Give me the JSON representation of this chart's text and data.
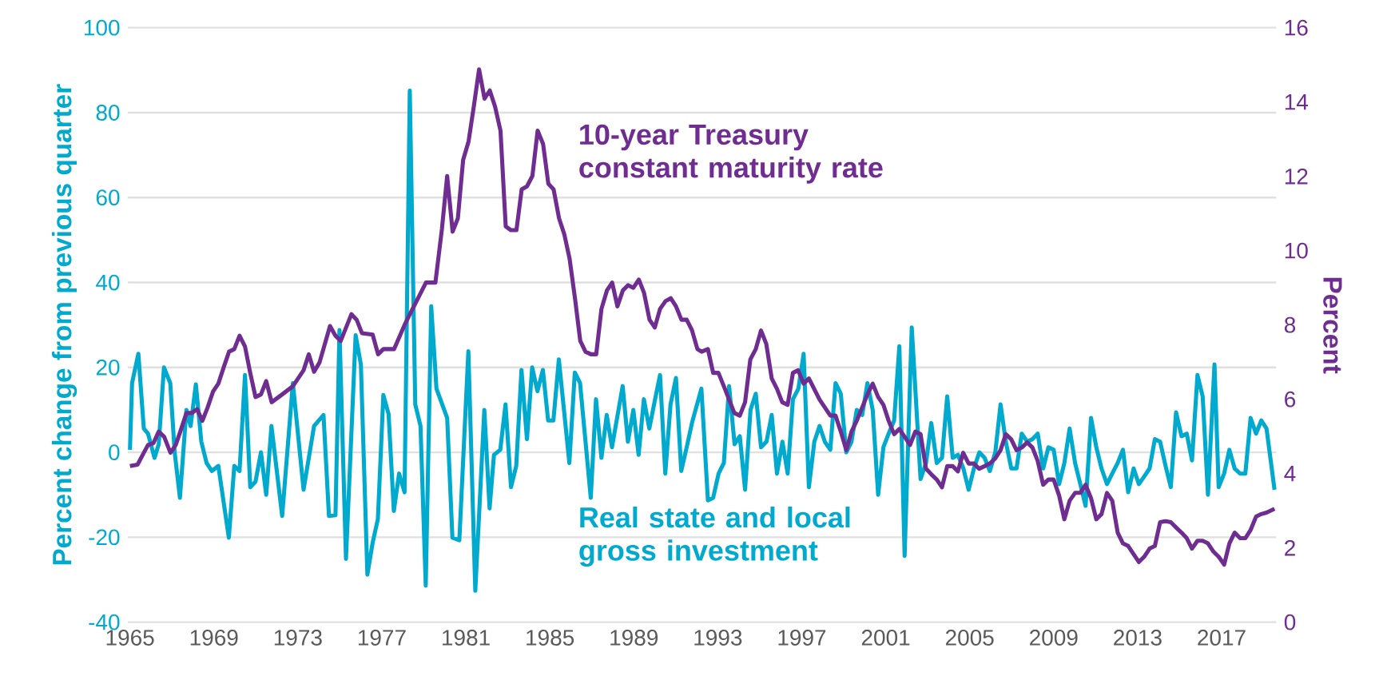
{
  "chart_data": {
    "type": "line",
    "ylabel": "Percent change from previous quarter",
    "y2label": "Percent",
    "xlim": [
      1964.9,
      2019.6
    ],
    "xticks": [
      1965,
      1969,
      1973,
      1977,
      1981,
      1985,
      1989,
      1993,
      1997,
      2001,
      2005,
      2009,
      2013,
      2017
    ],
    "ylim": [
      -40,
      100
    ],
    "yticks": [
      -40,
      -20,
      0,
      20,
      40,
      60,
      80,
      100
    ],
    "y2lim": [
      0,
      16
    ],
    "y2ticks": [
      0,
      2,
      4,
      6,
      8,
      10,
      12,
      14,
      16
    ],
    "grid": "y",
    "series": [
      {
        "name": "Real state and local gross investment",
        "color": "#00a9ce",
        "axis": "y",
        "x": [
          1965.0,
          1965.1,
          1965.4,
          1965.66,
          1965.86,
          1966.17,
          1966.37,
          1966.62,
          1966.92,
          1967.13,
          1967.38,
          1967.69,
          1967.89,
          1968.14,
          1968.4,
          1968.65,
          1968.9,
          1969.21,
          1969.71,
          1969.97,
          1970.22,
          1970.48,
          1970.73,
          1970.98,
          1971.24,
          1971.49,
          1971.74,
          1972.25,
          1972.76,
          1973.27,
          1973.77,
          1974.22,
          1974.48,
          1974.79,
          1974.98,
          1975.29,
          1975.75,
          1976.0,
          1976.31,
          1976.56,
          1976.81,
          1977.07,
          1977.32,
          1977.57,
          1977.82,
          1978.08,
          1978.33,
          1978.59,
          1978.84,
          1979.09,
          1979.35,
          1979.6,
          1980.11,
          1980.36,
          1980.69,
          1981.12,
          1981.45,
          1981.88,
          1982.13,
          1982.34,
          1982.64,
          1982.89,
          1983.15,
          1983.4,
          1983.65,
          1983.91,
          1984.16,
          1984.41,
          1984.67,
          1984.92,
          1985.17,
          1985.43,
          1985.93,
          1986.19,
          1986.44,
          1986.95,
          1987.2,
          1987.46,
          1987.71,
          1987.96,
          1988.47,
          1988.72,
          1988.98,
          1989.23,
          1989.48,
          1989.74,
          1989.99,
          1990.25,
          1990.5,
          1990.75,
          1991.01,
          1991.26,
          1991.52,
          1991.77,
          1992.22,
          1992.53,
          1992.78,
          1993.04,
          1993.29,
          1993.54,
          1993.8,
          1994.05,
          1994.3,
          1994.56,
          1994.81,
          1995.06,
          1995.32,
          1995.57,
          1995.82,
          1996.08,
          1996.33,
          1996.58,
          1996.84,
          1997.09,
          1997.34,
          1997.6,
          1997.85,
          1998.1,
          1998.36,
          1998.61,
          1998.86,
          1999.12,
          1999.37,
          1999.62,
          1999.88,
          2000.13,
          2000.38,
          2000.64,
          2000.89,
          2001.14,
          2001.4,
          2001.65,
          2001.9,
          2002.24,
          2002.66,
          2002.92,
          2003.17,
          2003.43,
          2003.68,
          2003.93,
          2004.19,
          2004.44,
          2004.7,
          2004.95,
          2005.2,
          2005.46,
          2005.71,
          2005.96,
          2006.22,
          2006.47,
          2006.72,
          2006.98,
          2007.23,
          2007.48,
          2007.74,
          2007.99,
          2008.24,
          2008.5,
          2008.75,
          2009.0,
          2009.26,
          2009.51,
          2009.76,
          2010.02,
          2010.27,
          2010.52,
          2010.78,
          2011.03,
          2011.28,
          2011.54,
          2011.79,
          2012.05,
          2012.3,
          2012.55,
          2012.81,
          2013.06,
          2013.31,
          2013.57,
          2013.82,
          2014.07,
          2014.33,
          2014.58,
          2014.83,
          2015.09,
          2015.34,
          2015.59,
          2015.85,
          2016.1,
          2016.35,
          2016.66,
          2016.86,
          2017.12,
          2017.37,
          2017.62,
          2017.88,
          2018.13,
          2018.38,
          2018.64,
          2018.89,
          2019.14,
          2019.52
        ],
        "values": [
          0.6,
          16.3,
          23.2,
          5.6,
          4.4,
          -1.3,
          1.9,
          20.0,
          16.3,
          0.0,
          -10.7,
          10.0,
          6.2,
          16.0,
          2.5,
          -2.5,
          -4.4,
          -3.2,
          -20.1,
          -3.2,
          -4.4,
          18.2,
          -8.2,
          -6.9,
          0.0,
          -10.0,
          6.2,
          -15.0,
          16.3,
          -8.8,
          6.2,
          8.8,
          -15.0,
          -14.8,
          28.8,
          -25.1,
          27.6,
          20.7,
          -28.8,
          -21.3,
          -15.7,
          13.5,
          9.0,
          -13.8,
          -5.0,
          -9.4,
          85.2,
          11.3,
          6.2,
          -31.4,
          34.4,
          15.0,
          8.1,
          -20.1,
          -20.7,
          23.8,
          -32.6,
          10.0,
          -13.2,
          -0.6,
          0.6,
          11.3,
          -8.2,
          -3.2,
          19.4,
          3.1,
          20.0,
          14.4,
          19.4,
          7.5,
          7.5,
          21.9,
          -2.5,
          18.8,
          16.3,
          -10.7,
          12.5,
          -1.3,
          8.8,
          1.2,
          15.6,
          2.5,
          10.0,
          -0.6,
          12.5,
          5.6,
          11.9,
          18.2,
          -5.0,
          11.3,
          17.5,
          -4.4,
          1.2,
          6.9,
          15.0,
          -11.3,
          -10.7,
          -5.0,
          -2.5,
          15.6,
          1.9,
          3.8,
          -8.8,
          10.0,
          13.8,
          1.2,
          2.5,
          8.8,
          -5.0,
          2.5,
          -5.0,
          12.5,
          15.0,
          23.2,
          -8.2,
          2.5,
          6.2,
          2.5,
          0.6,
          16.3,
          13.8,
          0.0,
          2.5,
          10.0,
          8.8,
          16.3,
          10.0,
          -10.0,
          1.2,
          4.4,
          7.5,
          25.0,
          -24.4,
          29.4,
          -6.3,
          -2.5,
          6.9,
          -2.5,
          -1.3,
          13.2,
          -1.3,
          -0.6,
          -3.8,
          -8.8,
          -3.8,
          0.0,
          -1.3,
          -4.4,
          0.0,
          11.3,
          2.5,
          -3.8,
          -3.8,
          4.4,
          2.5,
          3.1,
          4.4,
          -3.8,
          1.2,
          0.6,
          -7.5,
          -2.5,
          5.6,
          -2.5,
          -7.5,
          -12.6,
          8.1,
          1.2,
          -3.8,
          -7.5,
          -5.0,
          -2.5,
          0.6,
          -9.4,
          -3.8,
          -7.5,
          -5.7,
          -3.8,
          3.1,
          2.5,
          -3.2,
          -8.2,
          9.4,
          3.8,
          4.4,
          -1.9,
          18.2,
          13.1,
          -10.0,
          20.7,
          -8.2,
          -5.0,
          0.6,
          -3.8,
          -5.0,
          -5.0,
          8.1,
          4.4,
          7.5,
          5.6,
          -8.8
        ]
      },
      {
        "name": "10-year Treasury constant maturity rate",
        "color": "#6f2c91",
        "axis": "y2",
        "x": [
          1965.0,
          1965.36,
          1965.66,
          1965.86,
          1966.12,
          1966.37,
          1966.63,
          1966.93,
          1967.18,
          1967.44,
          1967.69,
          1967.94,
          1968.2,
          1968.45,
          1968.7,
          1968.96,
          1969.21,
          1969.46,
          1969.72,
          1969.97,
          1970.22,
          1970.48,
          1970.73,
          1970.98,
          1971.24,
          1971.49,
          1971.75,
          1972.25,
          1972.76,
          1973.27,
          1973.52,
          1973.77,
          1974.03,
          1974.53,
          1974.79,
          1975.04,
          1975.55,
          1975.8,
          1976.05,
          1976.56,
          1976.82,
          1977.07,
          1977.58,
          1978.08,
          1978.46,
          1978.59,
          1979.1,
          1979.55,
          1979.86,
          1980.11,
          1980.37,
          1980.62,
          1980.87,
          1981.13,
          1981.38,
          1981.63,
          1981.89,
          1982.14,
          1982.39,
          1982.65,
          1982.9,
          1983.15,
          1983.41,
          1983.66,
          1983.91,
          1984.17,
          1984.42,
          1984.68,
          1984.93,
          1985.18,
          1985.44,
          1985.69,
          1985.94,
          1986.2,
          1986.45,
          1986.7,
          1986.96,
          1987.21,
          1987.46,
          1987.72,
          1987.97,
          1988.22,
          1988.48,
          1988.73,
          1988.98,
          1989.24,
          1989.49,
          1989.75,
          1990.0,
          1990.25,
          1990.51,
          1990.76,
          1991.01,
          1991.27,
          1991.52,
          1991.77,
          1992.03,
          1992.23,
          1992.53,
          1992.78,
          1993.03,
          1993.29,
          1993.54,
          1993.79,
          1994.05,
          1994.3,
          1994.55,
          1994.81,
          1995.06,
          1995.31,
          1995.57,
          1995.82,
          1996.07,
          1996.33,
          1996.58,
          1996.83,
          1997.09,
          1997.34,
          1997.59,
          1997.85,
          1998.1,
          1998.36,
          1998.61,
          1998.86,
          1999.12,
          1999.37,
          1999.62,
          1999.88,
          2000.13,
          2000.38,
          2000.64,
          2000.89,
          2001.14,
          2001.4,
          2001.65,
          2001.9,
          2002.16,
          2002.41,
          2002.66,
          2002.92,
          2003.17,
          2003.43,
          2003.68,
          2003.93,
          2004.19,
          2004.44,
          2004.69,
          2004.95,
          2005.2,
          2005.45,
          2005.71,
          2005.96,
          2006.22,
          2006.47,
          2006.72,
          2006.98,
          2007.23,
          2007.48,
          2007.74,
          2007.99,
          2008.24,
          2008.5,
          2008.75,
          2009.0,
          2009.26,
          2009.51,
          2009.76,
          2010.02,
          2010.27,
          2010.52,
          2010.78,
          2011.03,
          2011.28,
          2011.54,
          2011.79,
          2012.05,
          2012.3,
          2012.55,
          2012.81,
          2013.06,
          2013.31,
          2013.57,
          2013.82,
          2014.07,
          2014.33,
          2014.58,
          2014.83,
          2015.09,
          2015.34,
          2015.59,
          2015.85,
          2016.1,
          2016.35,
          2016.61,
          2016.86,
          2017.12,
          2017.37,
          2017.62,
          2017.88,
          2018.13,
          2018.38,
          2018.64,
          2018.89,
          2019.14,
          2019.52
        ],
        "values": [
          4.2,
          4.24,
          4.56,
          4.77,
          4.82,
          5.13,
          4.99,
          4.56,
          4.77,
          5.2,
          5.63,
          5.63,
          5.73,
          5.42,
          5.78,
          6.21,
          6.42,
          6.85,
          7.28,
          7.35,
          7.71,
          7.42,
          6.71,
          6.06,
          6.13,
          6.49,
          5.92,
          6.13,
          6.35,
          6.78,
          7.21,
          6.74,
          6.99,
          7.97,
          7.71,
          7.57,
          8.29,
          8.14,
          7.78,
          7.74,
          7.21,
          7.35,
          7.35,
          8.0,
          8.43,
          8.57,
          9.14,
          9.14,
          10.58,
          12.01,
          10.51,
          10.87,
          12.44,
          12.94,
          13.88,
          14.88,
          14.09,
          14.31,
          13.88,
          13.23,
          10.65,
          10.55,
          10.55,
          11.65,
          11.73,
          12.01,
          13.23,
          12.87,
          11.8,
          11.65,
          10.87,
          10.44,
          9.79,
          8.71,
          7.57,
          7.28,
          7.21,
          7.21,
          8.43,
          8.93,
          9.14,
          8.5,
          8.93,
          9.07,
          9.0,
          9.22,
          8.86,
          8.14,
          7.93,
          8.43,
          8.64,
          8.72,
          8.5,
          8.14,
          8.14,
          7.86,
          7.35,
          7.28,
          7.35,
          6.71,
          6.71,
          6.35,
          5.99,
          5.63,
          5.56,
          5.92,
          7.07,
          7.35,
          7.85,
          7.49,
          6.56,
          6.28,
          5.92,
          5.85,
          6.71,
          6.78,
          6.42,
          6.56,
          6.28,
          5.99,
          5.78,
          5.56,
          5.56,
          5.13,
          4.63,
          5.13,
          5.42,
          5.78,
          6.13,
          6.42,
          6.06,
          5.85,
          5.42,
          5.06,
          5.2,
          4.99,
          4.77,
          5.13,
          5.06,
          4.13,
          3.98,
          3.84,
          3.63,
          4.2,
          4.2,
          4.06,
          4.56,
          4.27,
          4.27,
          4.13,
          4.2,
          4.27,
          4.41,
          4.63,
          5.06,
          4.92,
          4.63,
          4.7,
          4.84,
          4.7,
          4.34,
          3.7,
          3.84,
          3.84,
          3.41,
          2.77,
          3.27,
          3.48,
          3.48,
          3.7,
          3.34,
          2.77,
          2.91,
          3.48,
          3.27,
          2.41,
          2.12,
          2.05,
          1.83,
          1.62,
          1.76,
          1.98,
          2.05,
          2.69,
          2.72,
          2.69,
          2.55,
          2.41,
          2.26,
          1.98,
          2.19,
          2.19,
          2.12,
          1.9,
          1.76,
          1.55,
          2.12,
          2.41,
          2.26,
          2.26,
          2.48,
          2.84,
          2.91,
          2.95,
          3.05
        ]
      }
    ]
  }
}
